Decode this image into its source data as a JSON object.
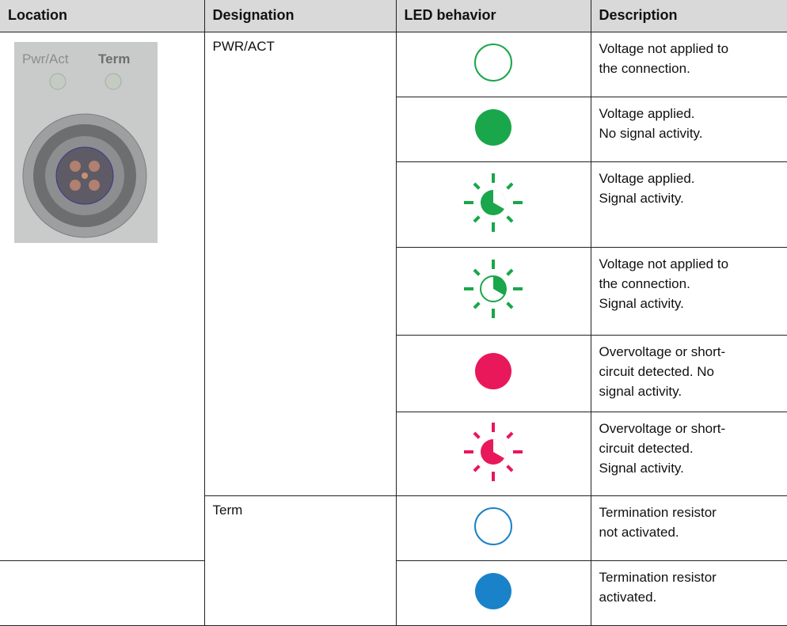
{
  "table": {
    "headers": [
      "Location",
      "Designation",
      "LED behavior",
      "Description"
    ],
    "location_image": {
      "labels": [
        "Pwr/Act",
        "Term"
      ]
    },
    "rows": [
      {
        "designation": "PWR/ACT",
        "description": [
          "Voltage not applied to",
          "the connection."
        ]
      },
      {
        "description": [
          "Voltage applied.",
          "No signal activity."
        ]
      },
      {
        "description": [
          "Voltage applied.",
          "Signal activity."
        ]
      },
      {
        "description": [
          "Voltage not applied to",
          "the connection.",
          "Signal activity."
        ]
      },
      {
        "description": [
          "Overvoltage or short-",
          "circuit detected. No",
          "signal activity."
        ]
      },
      {
        "description": [
          "Overvoltage or short-",
          "circuit detected.",
          "Signal activity."
        ]
      },
      {
        "designation": "Term",
        "description": [
          "Termination resistor",
          "not activated."
        ]
      },
      {
        "description": [
          "Termination resistor",
          "activated."
        ]
      }
    ]
  }
}
